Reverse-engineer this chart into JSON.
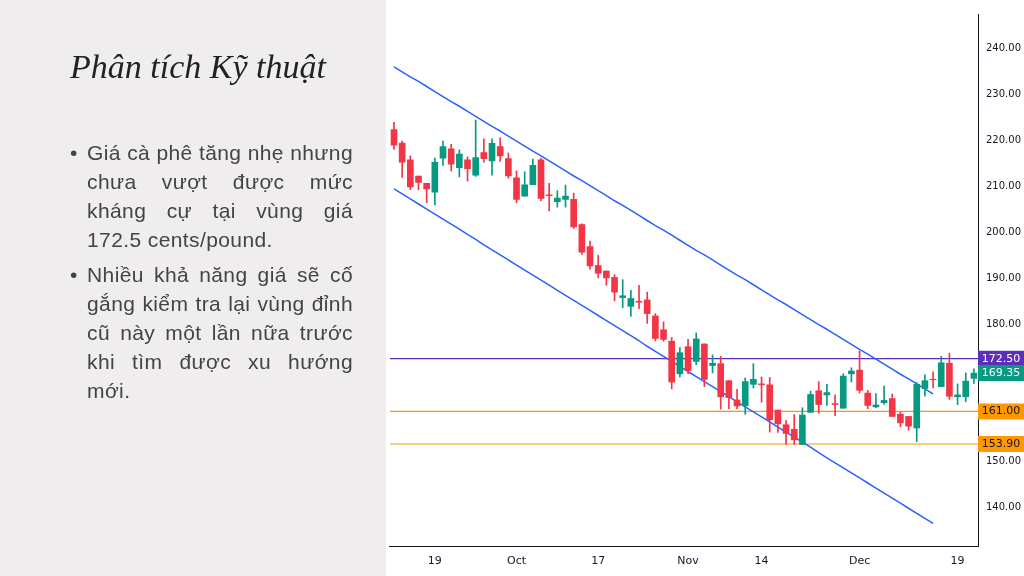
{
  "chart_data": {
    "type": "candlestick",
    "title": "Phân tích Kỹ thuật",
    "annotations": [
      "• Giá cà phê tăng nhẹ nhưng chưa vượt được mức kháng cự tại vùng giá 172.5 cents/pound.",
      "• Nhiều khả năng giá sẽ cố gắng kiểm tra lại vùng đỉnh cũ này một lần nữa trước khi tìm được xu hướng mới.",
      "169.35"
    ],
    "categories": [
      null,
      null,
      null,
      null,
      null,
      "19",
      null,
      null,
      null,
      null,
      null,
      null,
      null,
      null,
      null,
      "Oct",
      null,
      null,
      null,
      null,
      null,
      null,
      null,
      null,
      null,
      "17",
      null,
      null,
      null,
      null,
      null,
      null,
      null,
      null,
      null,
      null,
      "Nov",
      null,
      null,
      null,
      null,
      null,
      null,
      null,
      null,
      "14",
      null,
      null,
      null,
      null,
      null,
      null,
      null,
      null,
      null,
      null,
      null,
      "Dec",
      null,
      null,
      null,
      null,
      null,
      null,
      null,
      null,
      null,
      null,
      null,
      "19",
      null,
      null
    ],
    "ohlc": [
      [
        222.4,
        224.0,
        218.1,
        219.0
      ],
      [
        219.5,
        219.9,
        212.0,
        215.3
      ],
      [
        215.8,
        216.7,
        209.3,
        209.9
      ],
      [
        212.3,
        212.3,
        209.3,
        210.9
      ],
      [
        210.7,
        210.7,
        206.5,
        209.5
      ],
      [
        208.8,
        216.2,
        206.0,
        215.3
      ],
      [
        216.2,
        219.9,
        214.6,
        218.7
      ],
      [
        218.2,
        219.2,
        213.4,
        214.9
      ],
      [
        214.1,
        218.0,
        212.1,
        217.1
      ],
      [
        215.8,
        216.5,
        211.2,
        213.9
      ],
      [
        212.5,
        224.5,
        212.2,
        216.3
      ],
      [
        217.4,
        220.4,
        215.3,
        216.1
      ],
      [
        215.6,
        220.4,
        212.5,
        219.4
      ],
      [
        218.7,
        220.6,
        215.5,
        216.7
      ],
      [
        216.1,
        217.3,
        211.8,
        212.3
      ],
      [
        211.9,
        213.4,
        206.5,
        207.2
      ],
      [
        207.9,
        213.2,
        207.9,
        210.4
      ],
      [
        210.4,
        216.0,
        210.4,
        214.6
      ],
      [
        215.8,
        216.2,
        206.9,
        207.4
      ],
      [
        208.2,
        210.7,
        204.7,
        208.0
      ],
      [
        206.7,
        209.1,
        205.5,
        207.5
      ],
      [
        207.2,
        210.3,
        205.5,
        207.9
      ],
      [
        207.2,
        208.6,
        200.9,
        201.2
      ],
      [
        201.7,
        201.9,
        195.2,
        195.7
      ],
      [
        196.9,
        198.1,
        192.0,
        192.7
      ],
      [
        192.8,
        195.0,
        190.1,
        191.1
      ],
      [
        191.6,
        191.6,
        188.5,
        190.1
      ],
      [
        190.2,
        190.8,
        185.1,
        187.0
      ],
      [
        185.8,
        189.7,
        183.6,
        186.2
      ],
      [
        183.9,
        187.4,
        181.7,
        185.6
      ],
      [
        185.0,
        188.5,
        183.4,
        184.8
      ],
      [
        185.3,
        187.0,
        180.2,
        182.3
      ],
      [
        181.8,
        182.3,
        176.4,
        176.9
      ],
      [
        178.8,
        180.5,
        176.3,
        176.7
      ],
      [
        176.3,
        177.1,
        165.9,
        167.4
      ],
      [
        169.2,
        174.9,
        168.5,
        173.8
      ],
      [
        175.1,
        176.7,
        169.2,
        169.9
      ],
      [
        171.9,
        178.1,
        171.2,
        176.8
      ],
      [
        175.7,
        175.7,
        166.4,
        168.0
      ],
      [
        171.0,
        173.3,
        169.4,
        171.5
      ],
      [
        171.4,
        173.0,
        161.5,
        164.2
      ],
      [
        167.7,
        167.7,
        161.6,
        164.0
      ],
      [
        163.5,
        165.8,
        161.6,
        162.2
      ],
      [
        162.2,
        168.3,
        160.4,
        167.5
      ],
      [
        166.9,
        171.4,
        166.1,
        168.0
      ],
      [
        167.0,
        168.5,
        163.0,
        166.8
      ],
      [
        166.8,
        168.4,
        156.5,
        159.2
      ],
      [
        161.3,
        161.3,
        156.4,
        158.3
      ],
      [
        158.1,
        159.0,
        153.8,
        156.2
      ],
      [
        157.1,
        160.3,
        153.8,
        154.8
      ],
      [
        153.8,
        161.8,
        153.8,
        160.2
      ],
      [
        160.8,
        165.4,
        160.8,
        164.7
      ],
      [
        165.5,
        167.5,
        160.6,
        162.5
      ],
      [
        164.6,
        166.9,
        162.3,
        165.1
      ],
      [
        162.7,
        164.6,
        160.1,
        162.5
      ],
      [
        161.7,
        169.2,
        161.7,
        168.7
      ],
      [
        169.2,
        170.5,
        167.4,
        169.8
      ],
      [
        170.0,
        174.2,
        165.0,
        165.6
      ],
      [
        165.0,
        165.6,
        161.6,
        162.3
      ],
      [
        162.0,
        164.9,
        161.8,
        162.4
      ],
      [
        162.9,
        166.5,
        162.5,
        163.4
      ],
      [
        163.8,
        164.8,
        159.9,
        159.9
      ],
      [
        160.4,
        160.9,
        157.7,
        158.5
      ],
      [
        159.9,
        159.9,
        156.9,
        157.8
      ],
      [
        157.4,
        167.3,
        154.4,
        166.9
      ],
      [
        166.0,
        169.0,
        164.3,
        167.7
      ],
      [
        168.0,
        169.6,
        166.1,
        167.9
      ],
      [
        166.4,
        173.0,
        166.4,
        171.6
      ],
      [
        171.5,
        173.7,
        163.6,
        164.3
      ],
      [
        164.2,
        167.0,
        162.5,
        164.6
      ],
      [
        164.2,
        169.4,
        163.1,
        167.6
      ],
      [
        168.2,
        170.3,
        167.1,
        169.35
      ]
    ],
    "series": [
      {
        "type": "line",
        "color": "#2962ff",
        "values": [
          236.1,
          235.0,
          233.9,
          232.9,
          231.8,
          230.7,
          229.6,
          228.5,
          227.5,
          226.4,
          225.3,
          224.2,
          223.1,
          222.1,
          221.0,
          219.9,
          218.8,
          217.7,
          216.7,
          215.6,
          214.5,
          213.4,
          212.3,
          211.3,
          210.2,
          209.1,
          208.0,
          206.9,
          205.9,
          204.8,
          203.7,
          202.6,
          201.5,
          200.5,
          199.4,
          198.3,
          197.2,
          196.1,
          195.1,
          194.0,
          192.9,
          191.8,
          190.7,
          189.7,
          188.6,
          187.5,
          186.4,
          185.3,
          184.3,
          183.2,
          182.1,
          181.0,
          179.9,
          178.9,
          177.8,
          176.7,
          175.6,
          174.5,
          173.5,
          172.4,
          171.3,
          170.2,
          169.1,
          168.1,
          167.0,
          165.9,
          164.8,
          null,
          null,
          null,
          null,
          null
        ]
      },
      {
        "type": "line",
        "color": "#2962ff",
        "values": [
          209.5,
          208.4,
          207.3,
          206.2,
          205.1,
          204.0,
          202.9,
          201.8,
          200.7,
          199.6,
          198.5,
          197.3,
          196.2,
          195.1,
          194.0,
          192.9,
          191.8,
          190.7,
          189.6,
          188.5,
          187.4,
          186.3,
          185.2,
          184.1,
          183.0,
          181.9,
          180.8,
          179.7,
          178.6,
          177.5,
          176.4,
          175.2,
          174.1,
          173.0,
          171.9,
          170.8,
          169.7,
          168.6,
          167.5,
          166.4,
          165.3,
          164.2,
          163.1,
          162.0,
          160.9,
          159.8,
          158.7,
          157.6,
          156.5,
          155.4,
          154.3,
          153.2,
          152.0,
          150.9,
          149.8,
          148.7,
          147.6,
          146.5,
          145.4,
          144.3,
          143.2,
          142.1,
          141.0,
          139.9,
          138.8,
          137.7,
          136.6,
          null,
          null,
          null,
          null,
          null
        ]
      }
    ],
    "ref_lines": [
      {
        "axis": "y",
        "value": 172.5,
        "label": "172.50",
        "color": "#5b2fb8"
      },
      {
        "axis": "y",
        "value": 161.0,
        "label": "161.00",
        "color": "#ff9800"
      },
      {
        "axis": "y",
        "value": 153.9,
        "label": "153.90",
        "color": "#ff9800"
      }
    ],
    "ylim": [
      131.5,
      247.6
    ],
    "yticks": [
      {
        "value": 140,
        "label": "140.00"
      },
      {
        "value": 150,
        "label": "150.00"
      },
      {
        "value": 180,
        "label": "180.00"
      },
      {
        "value": 190,
        "label": "190.00"
      },
      {
        "value": 200,
        "label": "200.00"
      },
      {
        "value": 210,
        "label": "210.00"
      },
      {
        "value": 220,
        "label": "220.00"
      },
      {
        "value": 230,
        "label": "230.00"
      },
      {
        "value": 240,
        "label": "240.00"
      }
    ],
    "grid": false,
    "legend": false
  }
}
